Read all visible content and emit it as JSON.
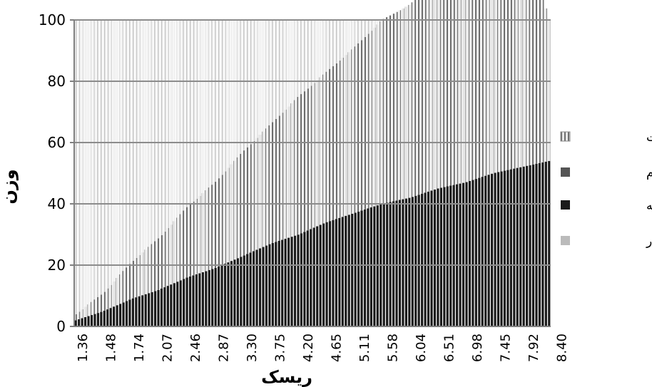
{
  "chart_data": {
    "type": "area",
    "stacked": true,
    "xlabel": "ریسک",
    "ylabel": "وزن",
    "ylim": [
      0,
      100
    ],
    "yticks": [
      0,
      20,
      40,
      60,
      80,
      100
    ],
    "x_tick_labels": [
      "1.36",
      "1.48",
      "1.74",
      "2.07",
      "2.46",
      "2.87",
      "3.30",
      "3.75",
      "4.20",
      "4.65",
      "5.11",
      "5.58",
      "6.04",
      "6.51",
      "6.98",
      "7.45",
      "7.92",
      "8.40"
    ],
    "x_points": 150,
    "grid": "horizontal",
    "legend_position": "right",
    "series": [
      {
        "name": "سکه",
        "color": "#1a1a1a",
        "values_at_ticks": [
          2,
          5,
          9,
          12,
          16,
          19,
          23,
          27,
          30,
          34,
          37,
          40,
          42,
          45,
          47,
          50,
          52,
          54
        ]
      },
      {
        "name": "سهام",
        "color": "#555555",
        "values_at_ticks": [
          0,
          0,
          0,
          0,
          0,
          0,
          0,
          0,
          0,
          0,
          0,
          0,
          0,
          0,
          0,
          0,
          0,
          0
        ]
      },
      {
        "name": "اوراق مشارکت",
        "color": "#6e6e6e",
        "pattern": "vertical-hatch",
        "values_at_ticks": [
          2,
          6,
          12,
          17,
          23,
          28,
          34,
          39,
          45,
          49,
          54,
          60,
          63,
          68,
          72,
          77,
          81,
          46
        ]
      },
      {
        "name": "دلار",
        "color": "#c8c8c8",
        "values_at_ticks": [
          96,
          89,
          79,
          71,
          61,
          53,
          43,
          34,
          25,
          17,
          9,
          0,
          0,
          0,
          0,
          0,
          0,
          0
        ]
      }
    ],
    "legend": [
      {
        "label": "اوراق مشارکت",
        "swatch": "hatch"
      },
      {
        "label": "سهام",
        "swatch": "#555555"
      },
      {
        "label": "سکه",
        "swatch": "#1a1a1a"
      },
      {
        "label": "دلار",
        "swatch": "#bbbbbb"
      }
    ]
  }
}
